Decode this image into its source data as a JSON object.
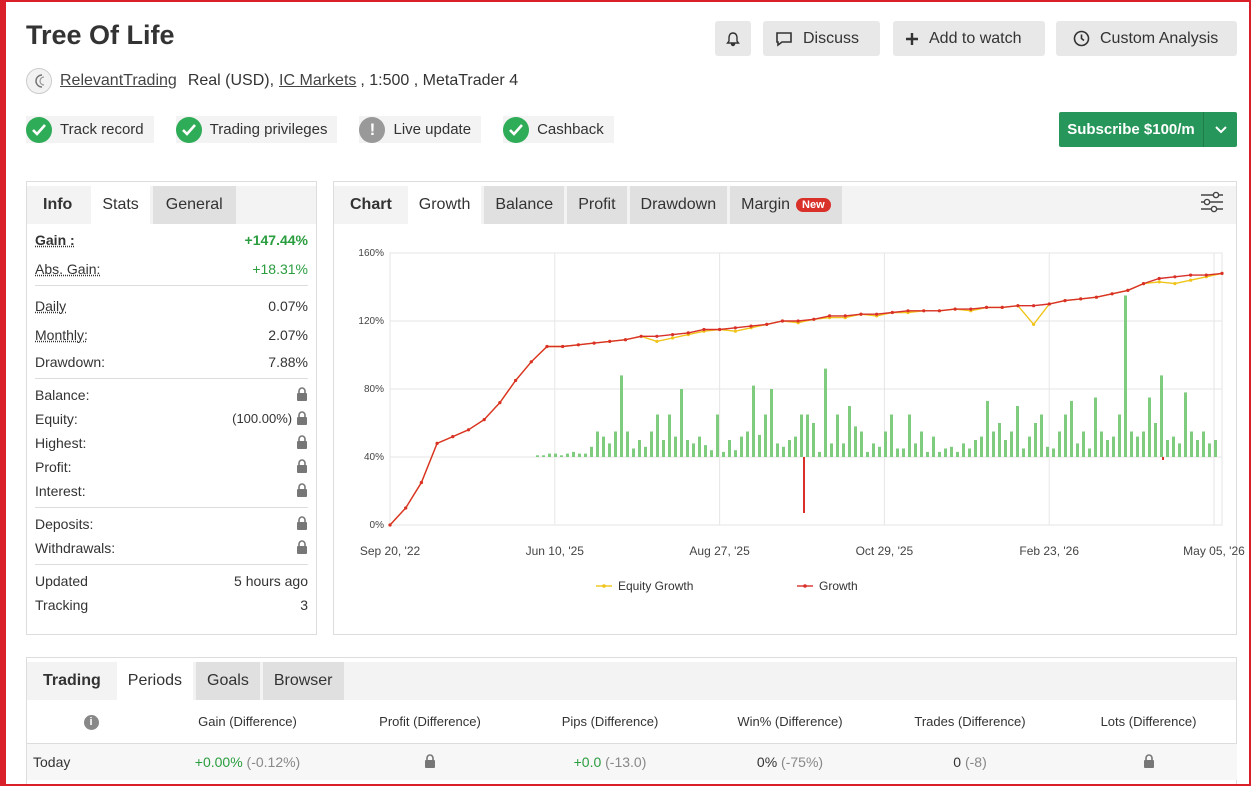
{
  "header": {
    "title": "Tree Of Life",
    "buttons": {
      "discuss": "Discuss",
      "watch": "Add to watch",
      "custom": "Custom Analysis"
    },
    "user": "RelevantTrading",
    "account_type": "Real (USD),",
    "broker": "IC Markets",
    "leverage_platform": ", 1:500 , MetaTrader 4"
  },
  "badges": [
    {
      "label": "Track record",
      "status": "ok"
    },
    {
      "label": "Trading privileges",
      "status": "ok"
    },
    {
      "label": "Live update",
      "status": "warn"
    },
    {
      "label": "Cashback",
      "status": "ok"
    }
  ],
  "subscribe": {
    "label": "Subscribe $100/m"
  },
  "info": {
    "tabs": {
      "head": "Info",
      "stats": "Stats",
      "general": "General"
    },
    "gain_label": "Gain :",
    "gain_value": "+147.44%",
    "abs_gain_label": "Abs. Gain:",
    "abs_gain_value": "+18.31%",
    "daily_label": "Daily",
    "daily_value": "0.07%",
    "monthly_label": "Monthly:",
    "monthly_value": "2.07%",
    "drawdown_label": "Drawdown:",
    "drawdown_value": "7.88%",
    "balance_label": "Balance:",
    "equity_label": "Equity:",
    "equity_value": "(100.00%)",
    "highest_label": "Highest:",
    "profit_label": "Profit:",
    "interest_label": "Interest:",
    "deposits_label": "Deposits:",
    "withdrawals_label": "Withdrawals:",
    "updated_label": "Updated",
    "updated_value": "5 hours ago",
    "tracking_label": "Tracking",
    "tracking_value": "3"
  },
  "chart_panel": {
    "tabs": {
      "head": "Chart",
      "growth": "Growth",
      "balance": "Balance",
      "profit": "Profit",
      "drawdown": "Drawdown",
      "margin": "Margin",
      "new_badge": "New"
    }
  },
  "chart_data": {
    "type": "line",
    "y_ticks": [
      "160%",
      "120%",
      "80%",
      "40%",
      "0%"
    ],
    "ylim": [
      0,
      160
    ],
    "x_ticks": [
      "Sep 20, '22",
      "Jun 10, '25",
      "Aug 27, '25",
      "Oct 29, '25",
      "Feb 23, '26",
      "May 05, '26"
    ],
    "series": [
      {
        "name": "Equity Growth",
        "color": "#f0c419",
        "values": [
          0,
          10,
          25,
          48,
          52,
          56,
          62,
          72,
          85,
          96,
          105,
          105,
          106,
          107,
          108,
          109,
          111,
          108,
          110,
          112,
          114,
          115,
          114,
          116,
          118,
          120,
          119,
          121,
          122,
          122,
          124,
          123,
          125,
          125,
          126,
          126,
          127,
          126,
          128,
          128,
          129,
          118,
          130,
          132,
          133,
          134,
          136,
          138,
          142,
          143,
          142,
          144,
          146,
          148
        ]
      },
      {
        "name": "Growth",
        "color": "#d9302a",
        "values": [
          0,
          10,
          25,
          48,
          52,
          56,
          62,
          72,
          85,
          96,
          105,
          105,
          106,
          107,
          108,
          109,
          111,
          111,
          112,
          113,
          115,
          115,
          116,
          117,
          118,
          120,
          120,
          121,
          123,
          123,
          124,
          124,
          125,
          126,
          126,
          126,
          127,
          127,
          128,
          128,
          129,
          129,
          130,
          132,
          133,
          134,
          136,
          138,
          142,
          145,
          146,
          147,
          147,
          148
        ]
      }
    ],
    "bars": [
      1,
      1,
      2,
      2,
      1,
      2,
      3,
      2,
      2,
      6,
      15,
      12,
      8,
      15,
      48,
      15,
      5,
      10,
      6,
      15,
      25,
      10,
      25,
      12,
      40,
      10,
      8,
      12,
      7,
      4,
      25,
      3,
      10,
      4,
      12,
      15,
      42,
      13,
      25,
      40,
      8,
      6,
      10,
      12,
      25,
      25,
      20,
      3,
      52,
      8,
      25,
      8,
      30,
      18,
      15,
      3,
      8,
      6,
      15,
      25,
      5,
      5,
      25,
      8,
      15,
      3,
      12,
      3,
      5,
      6,
      3,
      8,
      5,
      10,
      12,
      33,
      15,
      20,
      10,
      15,
      30,
      5,
      12,
      20,
      25,
      6,
      5,
      15,
      25,
      33,
      8,
      15,
      5,
      35,
      15,
      10,
      12,
      25,
      95,
      15,
      12,
      15,
      35,
      20,
      48,
      10,
      12,
      8,
      38,
      15,
      10,
      15,
      8,
      10
    ]
  },
  "legend": {
    "equity": "Equity Growth",
    "growth": "Growth"
  },
  "trading": {
    "tabs": {
      "head": "Trading",
      "periods": "Periods",
      "goals": "Goals",
      "browser": "Browser"
    },
    "columns": [
      "Gain (Difference)",
      "Profit (Difference)",
      "Pips (Difference)",
      "Win% (Difference)",
      "Trades (Difference)",
      "Lots (Difference)"
    ],
    "row": {
      "label": "Today",
      "gain": "+0.00%",
      "gain_diff": "(-0.12%)",
      "pips": "+0.0",
      "pips_diff": "(-13.0)",
      "win": "0%",
      "win_diff": "(-75%)",
      "trades": "0",
      "trades_diff": "(-8)"
    }
  }
}
